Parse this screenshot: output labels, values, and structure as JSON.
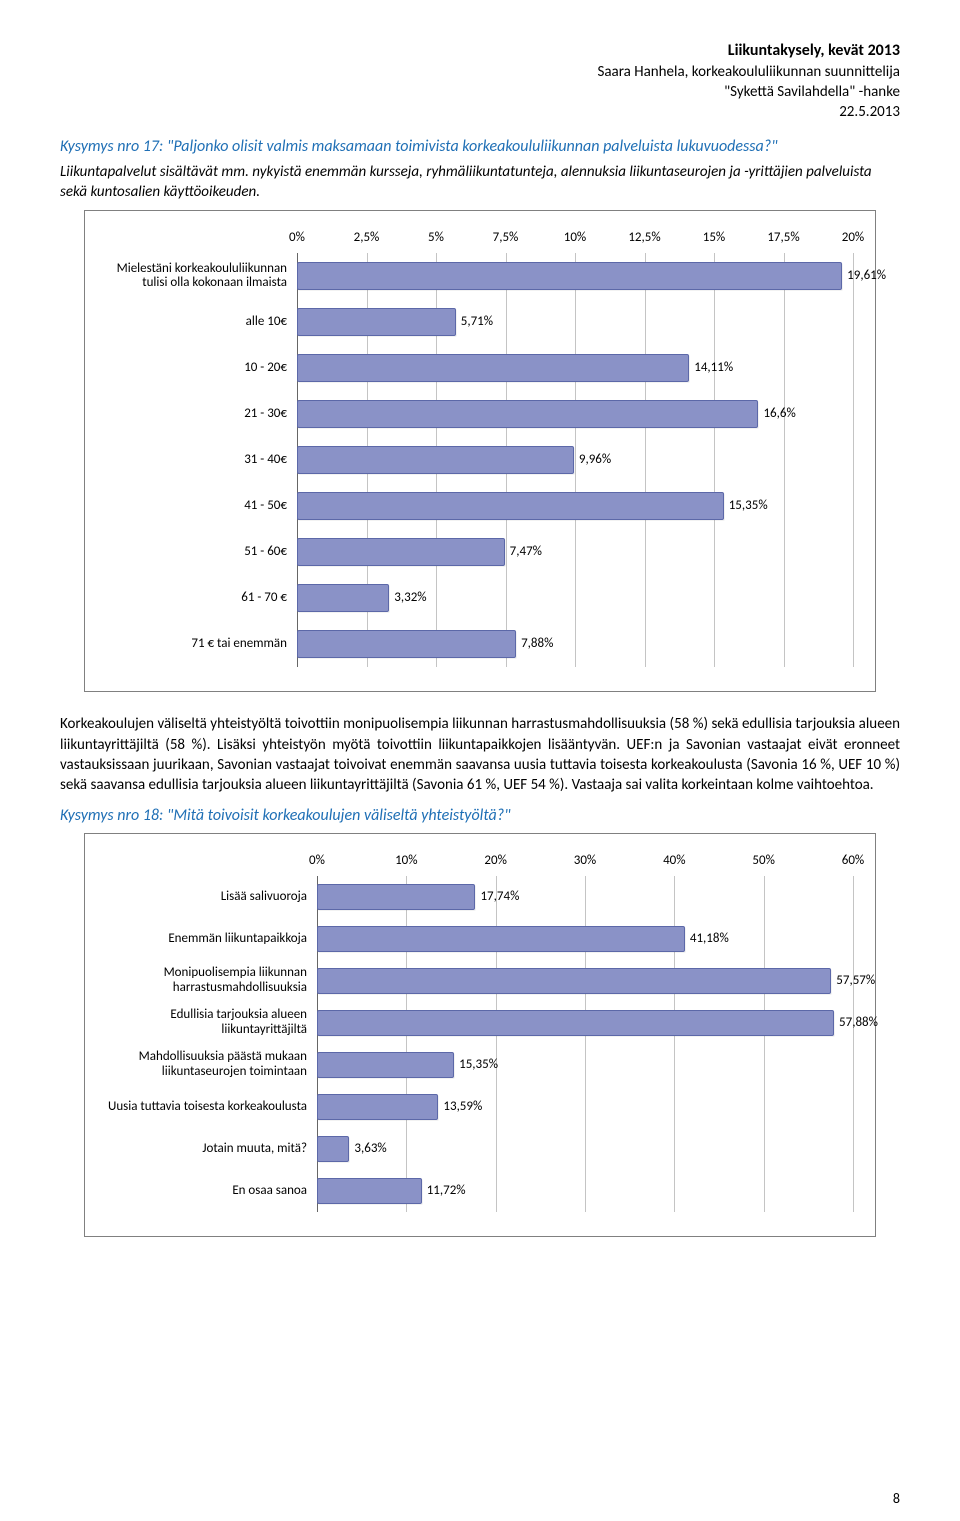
{
  "header": {
    "title_bold": "Liikuntakysely, kevät 2013",
    "line1": "Saara Hanhela, korkeakoululiikunnan suunnittelija",
    "line2": "\"Sykettä Savilahdella\" -hanke",
    "date": "22.5.2013"
  },
  "q17": {
    "question": "Kysymys nro 17: \"Paljonko olisit valmis maksamaan toimivista korkeakoululiikunnan palveluista lukuvuodessa?\"",
    "desc": "Liikuntapalvelut sisältävät mm. nykyistä enemmän kursseja, ryhmäliikuntatunteja, alennuksia liikuntaseurojen ja -yrittäjien palveluista sekä kuntosalien käyttöoikeuden."
  },
  "chart1": {
    "type": "bar",
    "xmax": 20,
    "ticks": [
      0,
      2.5,
      5,
      7.5,
      10,
      12.5,
      15,
      17.5,
      20
    ],
    "tick_labels": [
      "0%",
      "2,5%",
      "5%",
      "7,5%",
      "10%",
      "12,5%",
      "15%",
      "17,5%",
      "20%"
    ],
    "bar_color": "#8a92c7",
    "bar_border": "#5c68a8",
    "grid_color": "#c4c4c4",
    "rows": [
      {
        "label": "Mielestäni korkeakoululiikunnan tulisi olla kokonaan ilmaista",
        "value": 19.61,
        "display": "19,61%"
      },
      {
        "label": "alle 10€",
        "value": 5.71,
        "display": "5,71%"
      },
      {
        "label": "10 - 20€",
        "value": 14.11,
        "display": "14,11%"
      },
      {
        "label": "21 - 30€",
        "value": 16.6,
        "display": "16,6%"
      },
      {
        "label": "31 - 40€",
        "value": 9.96,
        "display": "9,96%"
      },
      {
        "label": "41 - 50€",
        "value": 15.35,
        "display": "15,35%"
      },
      {
        "label": "51 - 60€",
        "value": 7.47,
        "display": "7,47%"
      },
      {
        "label": "61 - 70 €",
        "value": 3.32,
        "display": "3,32%"
      },
      {
        "label": "71 € tai enemmän",
        "value": 7.88,
        "display": "7,88%"
      }
    ]
  },
  "body1": {
    "text": "Korkeakoulujen väliseltä yhteistyöltä toivottiin monipuolisempia liikunnan harrastusmahdollisuuksia (58 %) sekä edullisia tarjouksia alueen liikuntayrittäjiltä (58 %). Lisäksi yhteistyön myötä toivottiin liikuntapaikkojen lisääntyvän. UEF:n ja Savonian vastaajat eivät eronneet vastauksissaan juurikaan, Savonian vastaajat toivoivat enemmän saavansa uusia tuttavia toisesta korkeakoulusta (Savonia 16 %, UEF 10 %) sekä saavansa edullisia tarjouksia alueen liikuntayrittäjiltä (Savonia 61 %, UEF 54 %). Vastaaja sai valita korkeintaan kolme vaihtoehtoa."
  },
  "q18": {
    "question": "Kysymys nro 18: \"Mitä toivoisit korkeakoulujen väliseltä yhteistyöltä?\""
  },
  "chart2": {
    "type": "bar",
    "xmax": 60,
    "ticks": [
      0,
      10,
      20,
      30,
      40,
      50,
      60
    ],
    "tick_labels": [
      "0%",
      "10%",
      "20%",
      "30%",
      "40%",
      "50%",
      "60%"
    ],
    "bar_color": "#8a92c7",
    "bar_border": "#5c68a8",
    "grid_color": "#c4c4c4",
    "rows": [
      {
        "label": "Lisää salivuoroja",
        "value": 17.74,
        "display": "17,74%"
      },
      {
        "label": "Enemmän liikuntapaikkoja",
        "value": 41.18,
        "display": "41,18%"
      },
      {
        "label": "Monipuolisempia liikunnan harrastusmahdollisuuksia",
        "value": 57.57,
        "display": "57,57%"
      },
      {
        "label": "Edullisia tarjouksia alueen liikuntayrittäjiltä",
        "value": 57.88,
        "display": "57,88%"
      },
      {
        "label": "Mahdollisuuksia päästä mukaan liikuntaseurojen toimintaan",
        "value": 15.35,
        "display": "15,35%"
      },
      {
        "label": "Uusia tuttavia toisesta korkeakoulusta",
        "value": 13.59,
        "display": "13,59%"
      },
      {
        "label": "Jotain muuta, mitä?",
        "value": 3.63,
        "display": "3,63%"
      },
      {
        "label": "En osaa sanoa",
        "value": 11.72,
        "display": "11,72%"
      }
    ]
  },
  "page_number": "8"
}
